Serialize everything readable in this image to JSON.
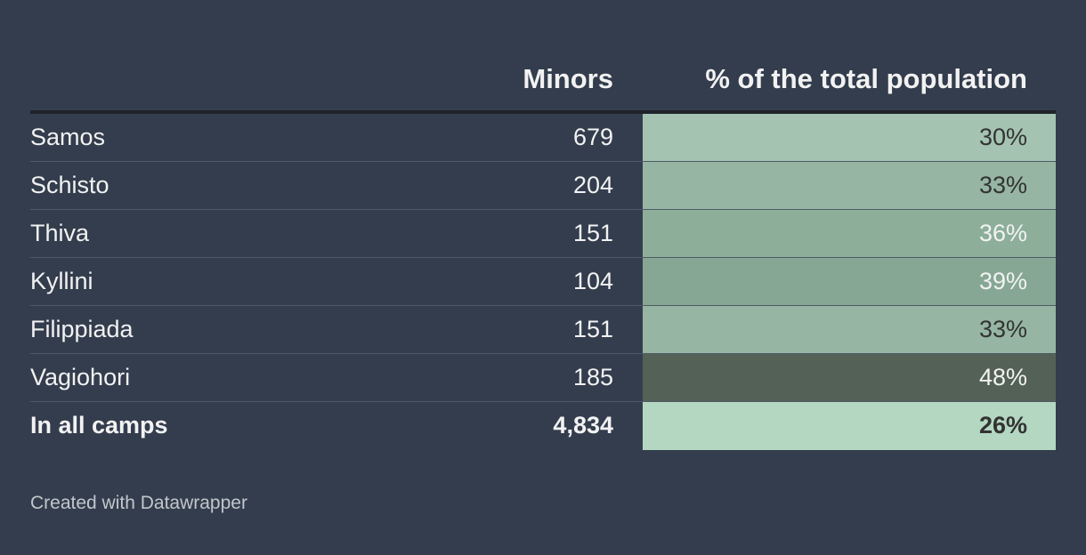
{
  "chart_data": {
    "type": "table",
    "columns": [
      "",
      "Minors",
      "% of the total population"
    ],
    "rows": [
      {
        "name": "Samos",
        "minors": "679",
        "pct_label": "30%",
        "pct": 30,
        "bg": "#a4c4b1",
        "fg": "#333333"
      },
      {
        "name": "Schisto",
        "minors": "204",
        "pct_label": "33%",
        "pct": 33,
        "bg": "#96b6a3",
        "fg": "#333333"
      },
      {
        "name": "Thiva",
        "minors": "151",
        "pct_label": "36%",
        "pct": 36,
        "bg": "#8daf9a",
        "fg": "#f2f2f2"
      },
      {
        "name": "Kyllini",
        "minors": "104",
        "pct_label": "39%",
        "pct": 39,
        "bg": "#86a793",
        "fg": "#f2f2f2"
      },
      {
        "name": "Filippiada",
        "minors": "151",
        "pct_label": "33%",
        "pct": 33,
        "bg": "#96b6a3",
        "fg": "#333333"
      },
      {
        "name": "Vagiohori",
        "minors": "185",
        "pct_label": "48%",
        "pct": 48,
        "bg": "#536157",
        "fg": "#f2f2f2"
      }
    ],
    "total": {
      "name": "In all camps",
      "minors": "4,834",
      "pct_label": "26%",
      "pct": 26,
      "bg": "#b4d7c2",
      "fg": "#333333"
    }
  },
  "footer": "Created with Datawrapper"
}
